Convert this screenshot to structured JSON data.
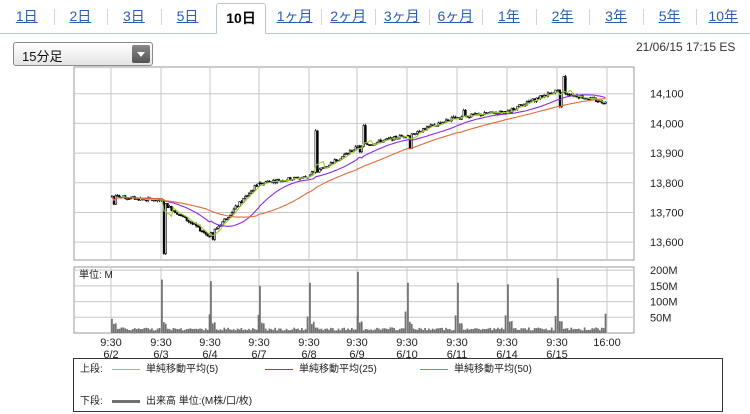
{
  "tabs": [
    {
      "label": "1日",
      "active": false
    },
    {
      "label": "2日",
      "active": false
    },
    {
      "label": "3日",
      "active": false
    },
    {
      "label": "5日",
      "active": false
    },
    {
      "label": "10日",
      "active": true
    },
    {
      "label": "1ヶ月",
      "active": false
    },
    {
      "label": "2ヶ月",
      "active": false
    },
    {
      "label": "3ヶ月",
      "active": false
    },
    {
      "label": "6ヶ月",
      "active": false
    },
    {
      "label": "1年",
      "active": false
    },
    {
      "label": "2年",
      "active": false
    },
    {
      "label": "3年",
      "active": false
    },
    {
      "label": "5年",
      "active": false
    },
    {
      "label": "10年",
      "active": false
    }
  ],
  "interval_select": {
    "value": "15分足"
  },
  "timestamp": "21/06/15 17:15 ES",
  "legend": {
    "upper_label": "上段:",
    "lower_label": "下段:",
    "ma5": "単純移動平均(5)",
    "ma25": "単純移動平均(25)",
    "ma50": "単純移動平均(50)",
    "volume": "出来高 単位:(M株/口/枚)"
  },
  "colors": {
    "tab_link": "#2a5db0",
    "ma5": "#9acd32",
    "ma25": "#8a2be2",
    "ma50": "#e06a3a",
    "candle_up": "#ffffff",
    "candle_down": "#000000",
    "volume": "#707070",
    "grid": "#c8c8c8"
  },
  "chart_data": {
    "type": "candlestick",
    "price_axis": {
      "ticks": [
        "14,100",
        "14,000",
        "13,900",
        "13,800",
        "13,700",
        "13,600"
      ],
      "tick_values": [
        14100,
        14000,
        13900,
        13800,
        13700,
        13600
      ],
      "ylim": [
        13540,
        14190
      ]
    },
    "volume_axis": {
      "unit_label": "単位: M",
      "ticks": [
        "200M",
        "150M",
        "100M",
        "50M"
      ],
      "tick_values": [
        200,
        150,
        100,
        50
      ],
      "ylim": [
        0,
        210
      ]
    },
    "x_ticks": [
      {
        "time": "9:30",
        "date": "6/2"
      },
      {
        "time": "9:30",
        "date": "6/3"
      },
      {
        "time": "9:30",
        "date": "6/4"
      },
      {
        "time": "9:30",
        "date": "6/7"
      },
      {
        "time": "9:30",
        "date": "6/8"
      },
      {
        "time": "9:30",
        "date": "6/9"
      },
      {
        "time": "9:30",
        "date": "6/10"
      },
      {
        "time": "9:30",
        "date": "6/11"
      },
      {
        "time": "9:30",
        "date": "6/14"
      },
      {
        "time": "9:30",
        "date": "6/15"
      },
      {
        "time": "16:00",
        "date": ""
      }
    ],
    "sessions": [
      {
        "date": "6/2",
        "open": 13755,
        "high": 13770,
        "low": 13730,
        "close": 13740,
        "vol_peak": 45
      },
      {
        "date": "6/3",
        "open": 13740,
        "high": 13755,
        "low": 13560,
        "close": 13620,
        "vol_peak": 170
      },
      {
        "date": "6/4",
        "open": 13620,
        "high": 13810,
        "low": 13610,
        "close": 13800,
        "vol_peak": 165
      },
      {
        "date": "6/7",
        "open": 13800,
        "high": 13830,
        "low": 13790,
        "close": 13820,
        "vol_peak": 150
      },
      {
        "date": "6/8",
        "open": 13820,
        "high": 13990,
        "low": 13840,
        "close": 13920,
        "vol_peak": 160
      },
      {
        "date": "6/9",
        "open": 13920,
        "high": 14000,
        "low": 13900,
        "close": 13960,
        "vol_peak": 195
      },
      {
        "date": "6/10",
        "open": 13960,
        "high": 14025,
        "low": 13905,
        "close": 14020,
        "vol_peak": 160
      },
      {
        "date": "6/11",
        "open": 14020,
        "high": 14060,
        "low": 14010,
        "close": 14040,
        "vol_peak": 160
      },
      {
        "date": "6/14",
        "open": 14040,
        "high": 14120,
        "low": 14030,
        "close": 14110,
        "vol_peak": 155
      },
      {
        "date": "6/15",
        "open": 14110,
        "high": 14165,
        "low": 14060,
        "close": 14070,
        "vol_peak": 175
      }
    ]
  }
}
